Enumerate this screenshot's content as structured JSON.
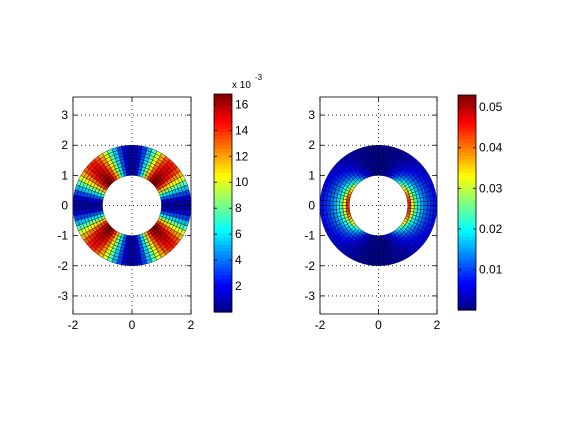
{
  "figure": {
    "background": "#ffffff",
    "colormap": "jet"
  },
  "chart_data": [
    {
      "type": "heatmap",
      "geometry": "annulus",
      "title": "",
      "xlabel": "",
      "ylabel": "",
      "xlim": [
        -2,
        2
      ],
      "ylim": [
        -3.6,
        3.6
      ],
      "xticks": [
        -2,
        0,
        2
      ],
      "yticks": [
        -3,
        -2,
        -1,
        0,
        1,
        2,
        3
      ],
      "xtick_labels": [
        "-2",
        "0",
        "2"
      ],
      "ytick_labels": [
        "-3",
        "-2",
        "-1",
        "0",
        "1",
        "2",
        "3"
      ],
      "grid": "dotted",
      "inner_radius": 1,
      "outer_radius": 2,
      "radial_cells": 9,
      "angular_cells": 72,
      "field": "sin^2(2θ) · (1 − 0.55·(r − 1)) · cmax, minimal along θ = 0°, 90°, 180°, 270°, maximal along diagonals",
      "colorbar": {
        "min": 0,
        "max": 0.0168,
        "ticks": [
          2,
          4,
          6,
          8,
          10,
          12,
          14,
          16
        ],
        "tick_labels": [
          "2",
          "4",
          "6",
          "8",
          "10",
          "12",
          "14",
          "16"
        ],
        "multiplier_label": "x 10",
        "multiplier_exponent": "-3"
      }
    },
    {
      "type": "heatmap",
      "geometry": "annulus",
      "title": "",
      "xlabel": "",
      "ylabel": "",
      "xlim": [
        -2,
        2
      ],
      "ylim": [
        -3.6,
        3.6
      ],
      "xticks": [
        -2,
        0,
        2
      ],
      "yticks": [
        -3,
        -2,
        -1,
        0,
        1,
        2,
        3
      ],
      "xtick_labels": [
        "-2",
        "0",
        "2"
      ],
      "ytick_labels": [
        "-3",
        "-2",
        "-1",
        "0",
        "1",
        "2",
        "3"
      ],
      "grid": "dotted",
      "inner_radius": 1,
      "outer_radius": 2,
      "radial_cells": 9,
      "angular_cells": 72,
      "field": "cos^2(θ) · (1 / r)^4 · cmax, maximal at inner edge along θ = 0° and 180°, minimal along θ = 90° and 270°",
      "colorbar": {
        "min": 0,
        "max": 0.053,
        "ticks": [
          0.01,
          0.02,
          0.03,
          0.04,
          0.05
        ],
        "tick_labels": [
          "0.01",
          "0.02",
          "0.03",
          "0.04",
          "0.05"
        ]
      }
    }
  ]
}
